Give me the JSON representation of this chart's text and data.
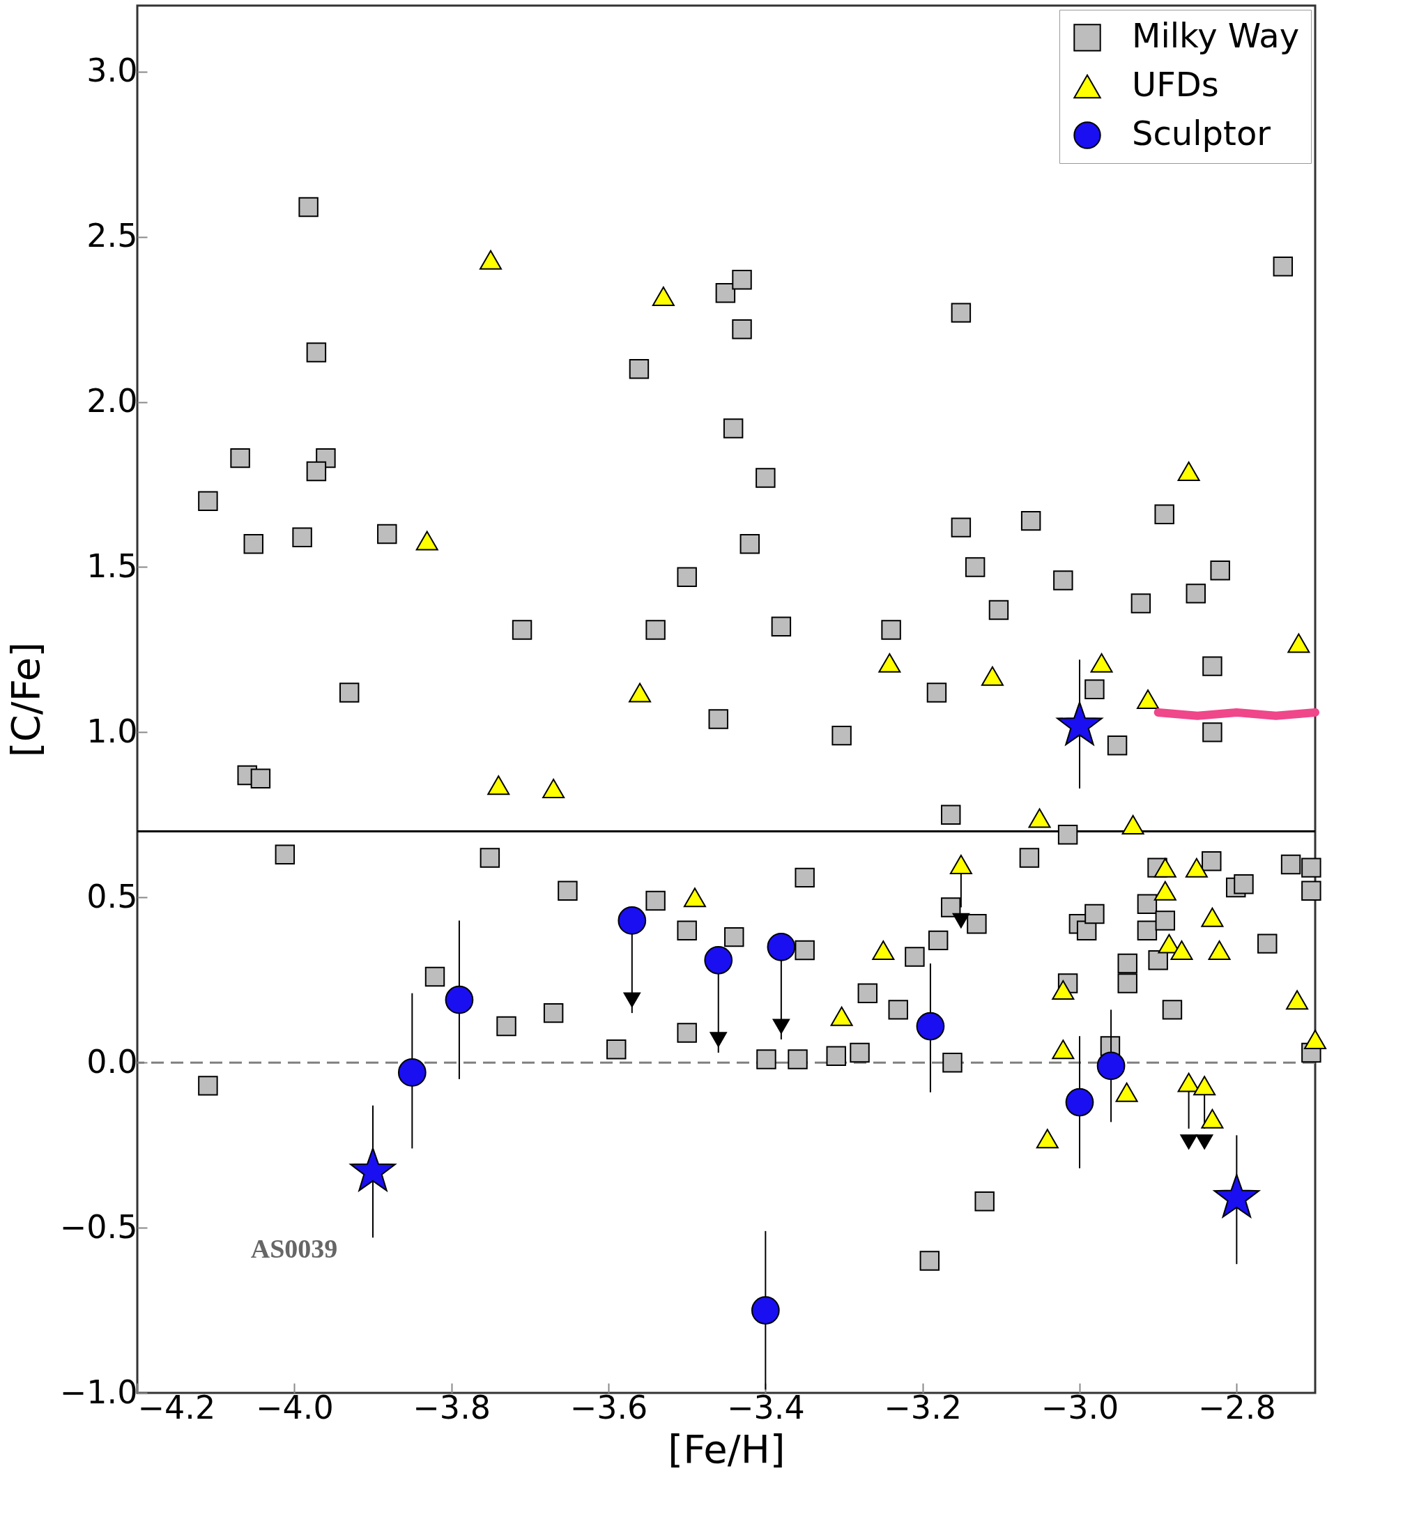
{
  "chart_data": {
    "type": "scatter",
    "xlabel": "[Fe/H]",
    "ylabel": "[C/Fe]",
    "xlim": [
      -4.2,
      -2.7
    ],
    "ylim": [
      -1.0,
      3.2
    ],
    "xticks": [
      {
        "value": -4.2,
        "label": "−4.2"
      },
      {
        "value": -4.0,
        "label": "−4.0"
      },
      {
        "value": -3.8,
        "label": "−3.8"
      },
      {
        "value": -3.6,
        "label": "−3.6"
      },
      {
        "value": -3.4,
        "label": "−3.4"
      },
      {
        "value": -3.2,
        "label": "−3.2"
      },
      {
        "value": -3.0,
        "label": "−3.0"
      },
      {
        "value": -2.8,
        "label": "−2.8"
      }
    ],
    "yticks": [
      {
        "value": -1.0,
        "label": "−1.0"
      },
      {
        "value": -0.5,
        "label": "−0.5"
      },
      {
        "value": 0.0,
        "label": "0.0"
      },
      {
        "value": 0.5,
        "label": "0.5"
      },
      {
        "value": 1.0,
        "label": "1.0"
      },
      {
        "value": 1.5,
        "label": "1.5"
      },
      {
        "value": 2.0,
        "label": "2.0"
      },
      {
        "value": 2.5,
        "label": "2.5"
      },
      {
        "value": 3.0,
        "label": "3.0"
      }
    ],
    "grid": false,
    "legend": "top right",
    "ref_lines": [
      {
        "axis": "y",
        "value": 0.7,
        "color": "#000000",
        "line_style": "solid"
      },
      {
        "axis": "y",
        "value": 0,
        "color": "#808080",
        "line_style": "dashed"
      }
    ],
    "annotations": [
      "AS0039"
    ],
    "series": [
      {
        "name": "Milky Way",
        "color": "#bdbdbd",
        "marker": "square",
        "x": [
          -3.982,
          -3.972,
          -4.069,
          -3.96,
          -3.972,
          -4.11,
          -4.052,
          -3.99,
          -3.882,
          -3.71,
          -3.93,
          -4.06,
          -4.043,
          -4.012,
          -4.11,
          -3.451,
          -3.43,
          -3.43,
          -3.561,
          -3.441,
          -3.4,
          -3.5,
          -3.42,
          -3.54,
          -3.38,
          -3.46,
          -3.303,
          -3.24,
          -3.151,
          -3.151,
          -3.133,
          -3.103,
          -3.062,
          -3.021,
          -3.182,
          -2.981,
          -2.952,
          -2.922,
          -2.892,
          -2.852,
          -2.821,
          -2.831,
          -2.831,
          -2.741,
          -3.164,
          -3.015,
          -3.064,
          -3.35,
          -3.54,
          -3.652,
          -3.751,
          -3.821,
          -3.73,
          -3.67,
          -3.59,
          -3.5,
          -3.5,
          -3.44,
          -3.399,
          -3.359,
          -3.35,
          -3.31,
          -3.28,
          -3.27,
          -3.231,
          -3.21,
          -3.18,
          -3.164,
          -3.131,
          -3.162,
          -3.121,
          -3.191,
          -3.001,
          -2.991,
          -2.981,
          -3.015,
          -2.961,
          -2.939,
          -2.939,
          -2.914,
          -2.914,
          -2.9,
          -2.901,
          -2.891,
          -2.882,
          -2.832,
          -2.801,
          -2.791,
          -2.761,
          -2.731,
          -2.705,
          -2.705,
          -2.705
        ],
        "values": [
          2.59,
          2.15,
          1.83,
          1.83,
          1.79,
          1.7,
          1.57,
          1.59,
          1.6,
          1.31,
          1.12,
          0.87,
          0.86,
          0.63,
          -0.07,
          2.33,
          2.37,
          2.22,
          2.1,
          1.92,
          1.77,
          1.47,
          1.57,
          1.31,
          1.32,
          1.04,
          0.99,
          1.31,
          2.27,
          1.62,
          1.5,
          1.37,
          1.64,
          1.46,
          1.12,
          1.13,
          0.96,
          1.39,
          1.66,
          1.42,
          1.49,
          1.2,
          1.0,
          2.41,
          0.75,
          0.69,
          0.62,
          0.56,
          0.49,
          0.52,
          0.62,
          0.26,
          0.11,
          0.15,
          0.04,
          0.4,
          0.09,
          0.38,
          0.01,
          0.01,
          0.34,
          0.02,
          0.03,
          0.21,
          0.16,
          0.32,
          0.37,
          0.47,
          0.42,
          0.0,
          -0.42,
          -0.6,
          0.42,
          0.4,
          0.45,
          0.24,
          0.05,
          0.3,
          0.24,
          0.48,
          0.4,
          0.31,
          0.59,
          0.43,
          0.16,
          0.61,
          0.53,
          0.54,
          0.36,
          0.6,
          0.59,
          0.52,
          0.03
        ]
      },
      {
        "name": "UFDs",
        "color": "#ffff00",
        "marker": "triangle",
        "x": [
          -3.75,
          -3.53,
          -3.831,
          -2.861,
          -2.721,
          -3.56,
          -3.242,
          -3.111,
          -2.972,
          -2.913,
          -3.74,
          -3.67,
          -3.051,
          -2.932,
          -3.151,
          -3.49,
          -2.891,
          -2.891,
          -2.851,
          -3.25,
          -2.886,
          -2.87,
          -2.831,
          -2.822,
          -3.021,
          -3.303,
          -3.021,
          -2.723,
          -2.7,
          -2.94,
          -3.041,
          -2.861,
          -2.841,
          -2.831
        ],
        "values": [
          2.43,
          2.32,
          1.58,
          1.79,
          1.27,
          1.12,
          1.21,
          1.17,
          1.21,
          1.1,
          0.84,
          0.83,
          0.74,
          0.72,
          0.6,
          0.5,
          0.59,
          0.52,
          0.59,
          0.34,
          0.36,
          0.34,
          0.44,
          0.34,
          0.22,
          0.14,
          0.04,
          0.19,
          0.07,
          -0.09,
          -0.23,
          -0.06,
          -0.07,
          -0.17
        ],
        "errors": [
          null,
          null,
          null,
          null,
          null,
          null,
          null,
          null,
          null,
          null,
          null,
          null,
          null,
          null,
          [
            0.47,
            0.6
          ],
          null,
          null,
          null,
          null,
          null,
          null,
          null,
          null,
          null,
          null,
          null,
          null,
          null,
          null,
          null,
          null,
          [
            -0.2,
            -0.06
          ],
          [
            -0.2,
            -0.07
          ],
          null
        ]
      },
      {
        "name": "Sculptor",
        "color": "#1a0ff0",
        "marker": "circle",
        "x": [
          -3.85,
          -3.79,
          -3.57,
          -3.46,
          -3.38,
          -3.4,
          -3.19,
          -3.0,
          -2.96
        ],
        "values": [
          -0.03,
          0.19,
          0.43,
          0.31,
          0.35,
          -0.75,
          0.11,
          -0.12,
          -0.01
        ],
        "errors": [
          [
            -0.26,
            0.21
          ],
          [
            -0.05,
            0.43
          ],
          [
            0.15,
            0.43
          ],
          [
            0.03,
            0.31
          ],
          [
            0.07,
            0.35
          ],
          [
            -0.99,
            -0.51
          ],
          [
            -0.09,
            0.3
          ],
          [
            -0.32,
            0.08
          ],
          [
            -0.18,
            0.16
          ]
        ]
      },
      {
        "color": "#1a0ff0",
        "marker": "star",
        "x": [
          -3.9,
          -3.0,
          -2.8
        ],
        "values": [
          -0.33,
          1.02,
          -0.41
        ],
        "errors": [
          [
            -0.53,
            -0.13
          ],
          [
            0.83,
            1.22
          ],
          [
            -0.61,
            -0.22
          ]
        ]
      },
      {
        "color": "#000000",
        "marker": "triangle-down",
        "x": [
          -3.57,
          -3.46,
          -3.38,
          -3.151,
          -2.861,
          -2.841
        ],
        "values": [
          0.19,
          0.07,
          0.11,
          0.43,
          -0.24,
          -0.24
        ]
      },
      {
        "type": "line",
        "color": "#f0468a",
        "x": [
          -2.9,
          -2.85,
          -2.8,
          -2.75,
          -2.7
        ],
        "values": [
          1.06,
          1.05,
          1.06,
          1.05,
          1.06
        ]
      }
    ]
  }
}
